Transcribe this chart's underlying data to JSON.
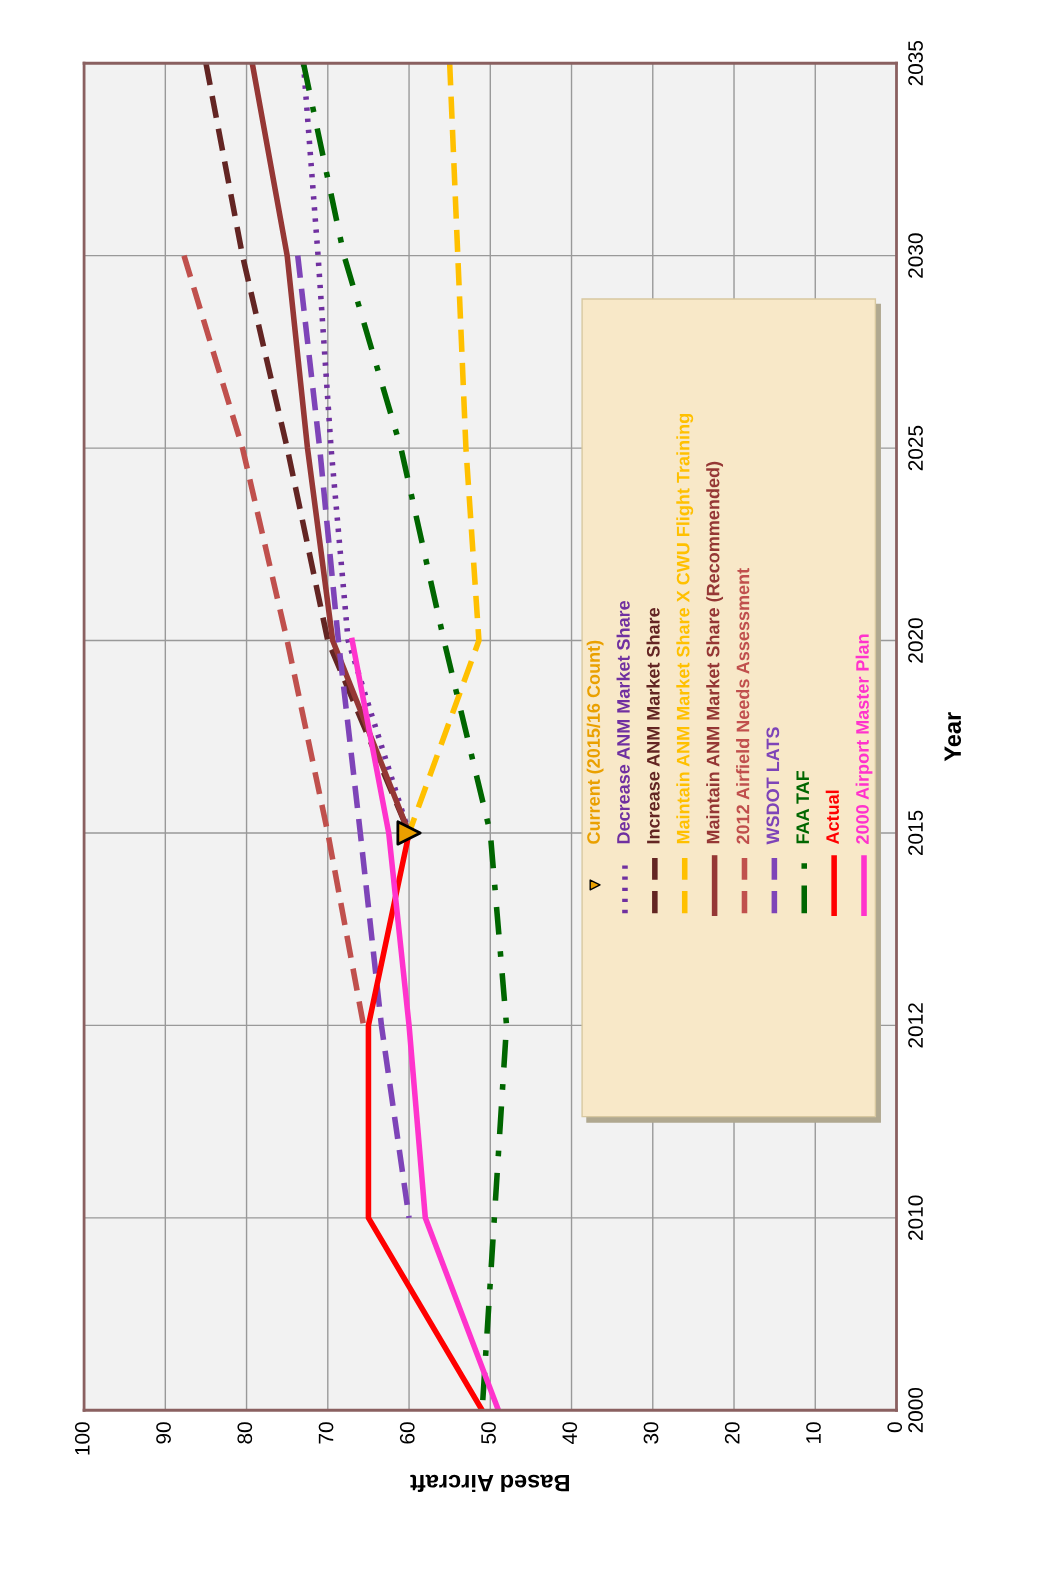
{
  "chart_data": {
    "type": "line",
    "orientation": "horizontal",
    "xlabel": "Based Aircraft",
    "ylabel": "Year",
    "categories": [
      "2035",
      "2030",
      "2025",
      "2020",
      "2015",
      "2012",
      "2010",
      "2000"
    ],
    "xlim": [
      100,
      0
    ],
    "xticks": [
      100,
      90,
      80,
      70,
      60,
      50,
      40,
      30,
      20,
      10,
      0
    ],
    "grid": true,
    "legend": "right",
    "series": [
      {
        "name": "Current (2015/16 Count)",
        "type": "scatter",
        "marker": "triangle",
        "color": "#eaa000",
        "values": [
          null,
          null,
          null,
          null,
          60,
          null,
          null,
          null
        ]
      },
      {
        "name": "Decrease ANM Market Share",
        "color": "#7030a0",
        "line_style": "dotted",
        "values": [
          73,
          71.2,
          69.6,
          67.5,
          60,
          null,
          null,
          null
        ]
      },
      {
        "name": "Increase ANM Market Share",
        "color": "#632523",
        "line_style": "dashed",
        "values": [
          85,
          80.5,
          75,
          70,
          60,
          null,
          null,
          null
        ]
      },
      {
        "name": "Maintain ANM Market Share X CWU Flight Training",
        "color": "#ffc000",
        "line_style": "dashed",
        "values": [
          55,
          54,
          53,
          51.4,
          60,
          null,
          null,
          null
        ]
      },
      {
        "name": "Maintain ANM Market Share (Recommended)",
        "color": "#953735",
        "line_style": "solid",
        "values": [
          79.3,
          75,
          72.5,
          69.4,
          60,
          null,
          null,
          null
        ]
      },
      {
        "name": "2012 Airfield Needs Assessment",
        "color": "#c0504d",
        "line_style": "dashed",
        "values": [
          null,
          87.7,
          80.5,
          75,
          70,
          65.6,
          null,
          null
        ]
      },
      {
        "name": "WSDOT LATS",
        "color": "#7e44b8",
        "line_style": "dashed",
        "values": [
          null,
          73.7,
          71,
          68.7,
          66,
          63.4,
          60,
          null
        ]
      },
      {
        "name": "FAA TAF",
        "color": "#006600",
        "line_style": "dashdot",
        "values": [
          73,
          68,
          61,
          55.7,
          50,
          48,
          49.5,
          51
        ]
      },
      {
        "name": "Actual",
        "color": "#ff0000",
        "line_style": "solid",
        "values": [
          null,
          null,
          null,
          null,
          60,
          65,
          65,
          51
        ]
      },
      {
        "name": "2000 Airport Master Plan",
        "color": "#ff33cc",
        "line_style": "solid",
        "values": [
          null,
          null,
          null,
          67,
          62.5,
          60,
          58,
          49
        ]
      }
    ]
  }
}
